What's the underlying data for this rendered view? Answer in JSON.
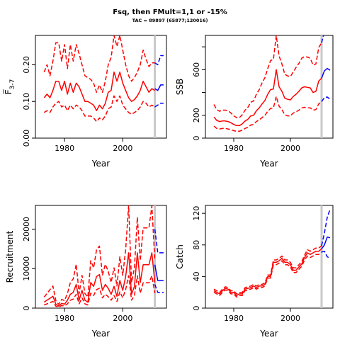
{
  "figure": {
    "title": "Fsq, then FMult=1,1 or -15%",
    "subtitle": "TAC = 89897 (65877;120016)"
  },
  "colors": {
    "history": "#ff0000",
    "forecast": "#0000ff",
    "marker_line": "#c8c8c8"
  },
  "chart_data": [
    {
      "id": "fbar",
      "type": "line",
      "ylabel": "F̅3-7",
      "ylabel_main": "F̅",
      "ylabel_sub": "3-7",
      "xlabel": "Year",
      "xlim": [
        1970,
        2015
      ],
      "ylim": [
        0,
        0.28
      ],
      "xticks": [
        1980,
        2000
      ],
      "yticks": [
        0.0,
        0.1,
        0.2
      ],
      "ytick_labels": [
        "0.00",
        "0.10",
        "0.20"
      ],
      "marker_year": 2011,
      "history": {
        "x": [
          1973,
          1974,
          1975,
          1976,
          1977,
          1978,
          1979,
          1980,
          1981,
          1982,
          1983,
          1984,
          1985,
          1986,
          1987,
          1988,
          1989,
          1990,
          1991,
          1992,
          1993,
          1994,
          1995,
          1996,
          1997,
          1998,
          1999,
          2000,
          2001,
          2002,
          2003,
          2004,
          2005,
          2006,
          2007,
          2008,
          2009,
          2010,
          2011
        ],
        "median": [
          0.11,
          0.12,
          0.11,
          0.13,
          0.155,
          0.155,
          0.13,
          0.155,
          0.12,
          0.15,
          0.125,
          0.15,
          0.14,
          0.12,
          0.1,
          0.1,
          0.095,
          0.09,
          0.075,
          0.09,
          0.08,
          0.095,
          0.125,
          0.13,
          0.18,
          0.155,
          0.18,
          0.15,
          0.13,
          0.11,
          0.1,
          0.105,
          0.115,
          0.13,
          0.155,
          0.14,
          0.125,
          0.135,
          0.13
        ],
        "lower": [
          0.07,
          0.075,
          0.07,
          0.085,
          0.095,
          0.1,
          0.085,
          0.09,
          0.075,
          0.09,
          0.08,
          0.09,
          0.085,
          0.075,
          0.06,
          0.06,
          0.06,
          0.055,
          0.045,
          0.055,
          0.05,
          0.06,
          0.08,
          0.085,
          0.115,
          0.1,
          0.115,
          0.09,
          0.08,
          0.07,
          0.065,
          0.07,
          0.075,
          0.085,
          0.1,
          0.095,
          0.085,
          0.09,
          0.085
        ],
        "upper": [
          0.18,
          0.2,
          0.17,
          0.21,
          0.26,
          0.26,
          0.21,
          0.255,
          0.19,
          0.255,
          0.21,
          0.255,
          0.23,
          0.2,
          0.17,
          0.165,
          0.16,
          0.15,
          0.125,
          0.145,
          0.125,
          0.155,
          0.2,
          0.22,
          0.28,
          0.25,
          0.28,
          0.24,
          0.2,
          0.17,
          0.155,
          0.165,
          0.18,
          0.2,
          0.24,
          0.215,
          0.195,
          0.205,
          0.205
        ]
      },
      "forecast": {
        "x": [
          2011,
          2012,
          2013,
          2014
        ],
        "median": [
          0.135,
          0.13,
          0.145,
          0.145
        ],
        "lower": [
          0.085,
          0.09,
          0.095,
          0.095
        ],
        "upper": [
          0.205,
          0.2,
          0.225,
          0.225
        ]
      }
    },
    {
      "id": "ssb",
      "type": "line",
      "ylabel": "SSB",
      "xlabel": "Year",
      "xlim": [
        1970,
        2015
      ],
      "ylim": [
        0,
        900
      ],
      "xticks": [
        1980,
        2000
      ],
      "yticks": [
        0,
        200,
        400,
        600,
        800
      ],
      "ytick_labels": [
        "0",
        "200",
        "",
        "600",
        ""
      ],
      "marker_year": 2011,
      "history": {
        "x": [
          1973,
          1974,
          1975,
          1976,
          1977,
          1978,
          1979,
          1980,
          1981,
          1982,
          1983,
          1984,
          1985,
          1986,
          1987,
          1988,
          1989,
          1990,
          1991,
          1992,
          1993,
          1994,
          1995,
          1996,
          1997,
          1998,
          1999,
          2000,
          2001,
          2002,
          2003,
          2004,
          2005,
          2006,
          2007,
          2008,
          2009,
          2010,
          2011
        ],
        "median": [
          185,
          155,
          145,
          150,
          150,
          145,
          135,
          120,
          110,
          110,
          125,
          150,
          165,
          195,
          200,
          240,
          265,
          300,
          330,
          385,
          425,
          430,
          600,
          450,
          410,
          350,
          340,
          335,
          365,
          385,
          410,
          440,
          450,
          445,
          440,
          400,
          410,
          500,
          525
        ],
        "lower": [
          105,
          85,
          80,
          85,
          85,
          80,
          75,
          65,
          60,
          60,
          70,
          85,
          95,
          115,
          120,
          145,
          160,
          180,
          200,
          235,
          260,
          265,
          365,
          280,
          250,
          205,
          195,
          195,
          220,
          230,
          245,
          265,
          270,
          265,
          265,
          245,
          250,
          300,
          320
        ],
        "upper": [
          295,
          250,
          235,
          245,
          245,
          240,
          220,
          195,
          180,
          180,
          205,
          245,
          270,
          315,
          325,
          385,
          425,
          485,
          530,
          610,
          680,
          690,
          900,
          720,
          650,
          560,
          545,
          540,
          580,
          620,
          655,
          700,
          715,
          710,
          700,
          640,
          650,
          795,
          835
        ]
      },
      "forecast": {
        "x": [
          2011,
          2012,
          2013,
          2014
        ],
        "median": [
          525,
          590,
          610,
          595
        ],
        "lower": [
          320,
          355,
          360,
          340
        ],
        "upper": [
          835,
          935,
          960,
          940
        ]
      }
    },
    {
      "id": "recruitment",
      "type": "line",
      "ylabel": "Recruitment",
      "xlabel": "Year",
      "xlim": [
        1970,
        2015
      ],
      "ylim": [
        0,
        26000
      ],
      "xticks": [
        1980,
        2000
      ],
      "yticks": [
        0,
        10000,
        20000
      ],
      "ytick_labels": [
        "0",
        "10000",
        "20000"
      ],
      "marker_year": 2011,
      "history": {
        "x": [
          1973,
          1974,
          1975,
          1976,
          1977,
          1978,
          1979,
          1980,
          1981,
          1982,
          1983,
          1984,
          1985,
          1986,
          1987,
          1988,
          1989,
          1990,
          1991,
          1992,
          1993,
          1994,
          1995,
          1996,
          1997,
          1998,
          1999,
          2000,
          2001,
          2002,
          2003,
          2004,
          2005,
          2006,
          2007,
          2008,
          2009,
          2010,
          2011
        ],
        "median": [
          1500,
          2000,
          2500,
          3000,
          1000,
          500,
          1200,
          1000,
          2000,
          3500,
          4000,
          6000,
          2000,
          4500,
          2000,
          1500,
          6500,
          5500,
          8000,
          8500,
          4500,
          6000,
          5000,
          3500,
          5500,
          3000,
          7000,
          4500,
          8000,
          14000,
          3500,
          5500,
          14000,
          6500,
          11000,
          11000,
          11000,
          14000,
          6500
        ],
        "lower": [
          800,
          1100,
          1400,
          1700,
          500,
          250,
          650,
          550,
          1100,
          2000,
          2300,
          3500,
          1100,
          2600,
          1100,
          800,
          3800,
          3200,
          4700,
          5000,
          2600,
          3500,
          2900,
          2000,
          3200,
          1700,
          4100,
          2600,
          4700,
          8200,
          2000,
          3200,
          8200,
          3800,
          6400,
          6400,
          6400,
          8200,
          3800
        ],
        "upper": [
          2800,
          3700,
          4700,
          5600,
          1900,
          950,
          2200,
          1900,
          3700,
          6500,
          7400,
          11100,
          3700,
          8300,
          3700,
          2800,
          12000,
          10200,
          14800,
          15700,
          8300,
          11100,
          9300,
          6500,
          10200,
          5600,
          13000,
          8300,
          14800,
          26000,
          6500,
          10200,
          23000,
          12000,
          20300,
          20300,
          20300,
          25900,
          12000
        ]
      },
      "forecast": {
        "x": [
          2011,
          2012,
          2013,
          2014
        ],
        "median": [
          11000,
          7000,
          7000,
          7000
        ],
        "lower": [
          6000,
          4000,
          4000,
          4000
        ],
        "upper": [
          20000,
          14000,
          14000,
          14000
        ]
      }
    },
    {
      "id": "catch",
      "type": "line",
      "ylabel": "Catch",
      "xlabel": "Year",
      "xlim": [
        1970,
        2015
      ],
      "ylim": [
        0,
        130
      ],
      "xticks": [
        1980,
        2000
      ],
      "yticks": [
        0,
        40,
        80,
        120
      ],
      "ytick_labels": [
        "0",
        "40",
        "80",
        "120"
      ],
      "marker_year": 2011,
      "history": {
        "x": [
          1973,
          1974,
          1975,
          1976,
          1977,
          1978,
          1979,
          1980,
          1981,
          1982,
          1983,
          1984,
          1985,
          1986,
          1987,
          1988,
          1989,
          1990,
          1991,
          1992,
          1993,
          1994,
          1995,
          1996,
          1997,
          1998,
          1999,
          2000,
          2001,
          2002,
          2003,
          2004,
          2005,
          2006,
          2007,
          2008,
          2009,
          2010,
          2011
        ],
        "median": [
          22,
          20,
          18,
          22,
          25,
          24,
          20,
          20,
          16,
          18,
          18,
          24,
          25,
          26,
          28,
          26,
          28,
          28,
          30,
          40,
          40,
          58,
          58,
          60,
          63,
          58,
          58,
          55,
          48,
          48,
          52,
          56,
          64,
          70,
          68,
          70,
          72,
          72,
          75
        ],
        "lower": [
          20,
          18,
          16,
          20,
          23,
          22,
          18,
          18,
          14,
          16,
          16,
          22,
          23,
          24,
          26,
          24,
          26,
          26,
          28,
          38,
          38,
          55,
          55,
          57,
          60,
          55,
          55,
          52,
          45,
          45,
          49,
          53,
          61,
          66,
          64,
          66,
          68,
          68,
          71
        ],
        "upper": [
          24,
          22,
          20,
          24,
          27,
          26,
          22,
          22,
          18,
          20,
          20,
          26,
          27,
          28,
          30,
          28,
          30,
          30,
          32,
          42,
          42,
          61,
          61,
          63,
          66,
          61,
          61,
          58,
          51,
          51,
          55,
          59,
          67,
          74,
          72,
          74,
          76,
          76,
          79
        ]
      },
      "forecast": {
        "x": [
          2011,
          2012,
          2013,
          2014
        ],
        "median": [
          75,
          80,
          90,
          89
        ],
        "lower": [
          71,
          72,
          65,
          63
        ],
        "upper": [
          79,
          95,
          115,
          125
        ]
      }
    }
  ]
}
